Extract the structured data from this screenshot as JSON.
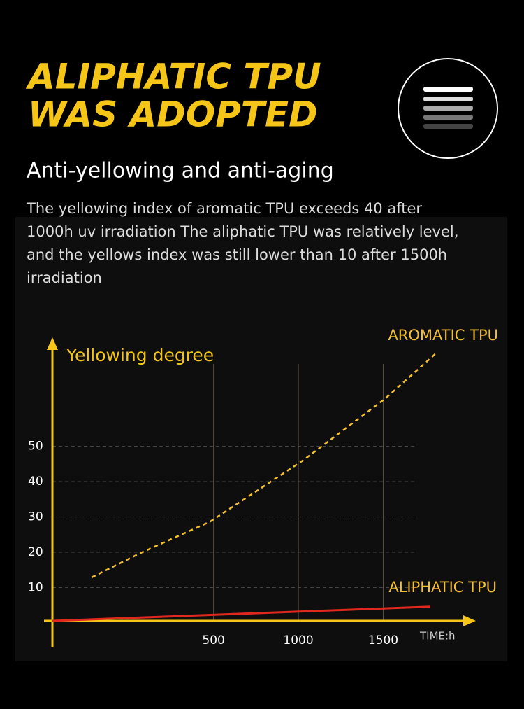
{
  "header": {
    "title_lines": [
      "ALIPHATIC TPU",
      "WAS ADOPTED"
    ],
    "subtitle": "Anti-yellowing and anti-aging",
    "paragraph_lines": [
      "The yellowing index of aromatic TPU exceeds 40 after",
      "1000h uv irradiation The aliphatic TPU was relatively level,",
      "and the yellows index was still lower than 10 after 1500h",
      "irradiation"
    ]
  },
  "chart_data": {
    "type": "line",
    "y_label": "Yellowing degree",
    "x_label": "TIME:h",
    "xlim": [
      -450,
      2050
    ],
    "xticks": [
      500,
      1000,
      1500
    ],
    "ylim": [
      0,
      80
    ],
    "yticks": [
      10,
      20,
      30,
      40,
      50
    ],
    "grid": true,
    "series": [
      {
        "name": "AROMATIC TPU",
        "color": "#f5c030",
        "dashed": true,
        "x": [
          -218,
          70,
          481,
          1025,
          1510,
          1819
        ],
        "values": [
          12.9,
          19.8,
          28.7,
          45.9,
          63.4,
          76.6
        ]
      },
      {
        "name": "ALIPHATIC TPU",
        "color": "#e0281e",
        "dashed": false,
        "x": [
          -450,
          1778
        ],
        "values": [
          0.6,
          4.6
        ]
      }
    ]
  }
}
